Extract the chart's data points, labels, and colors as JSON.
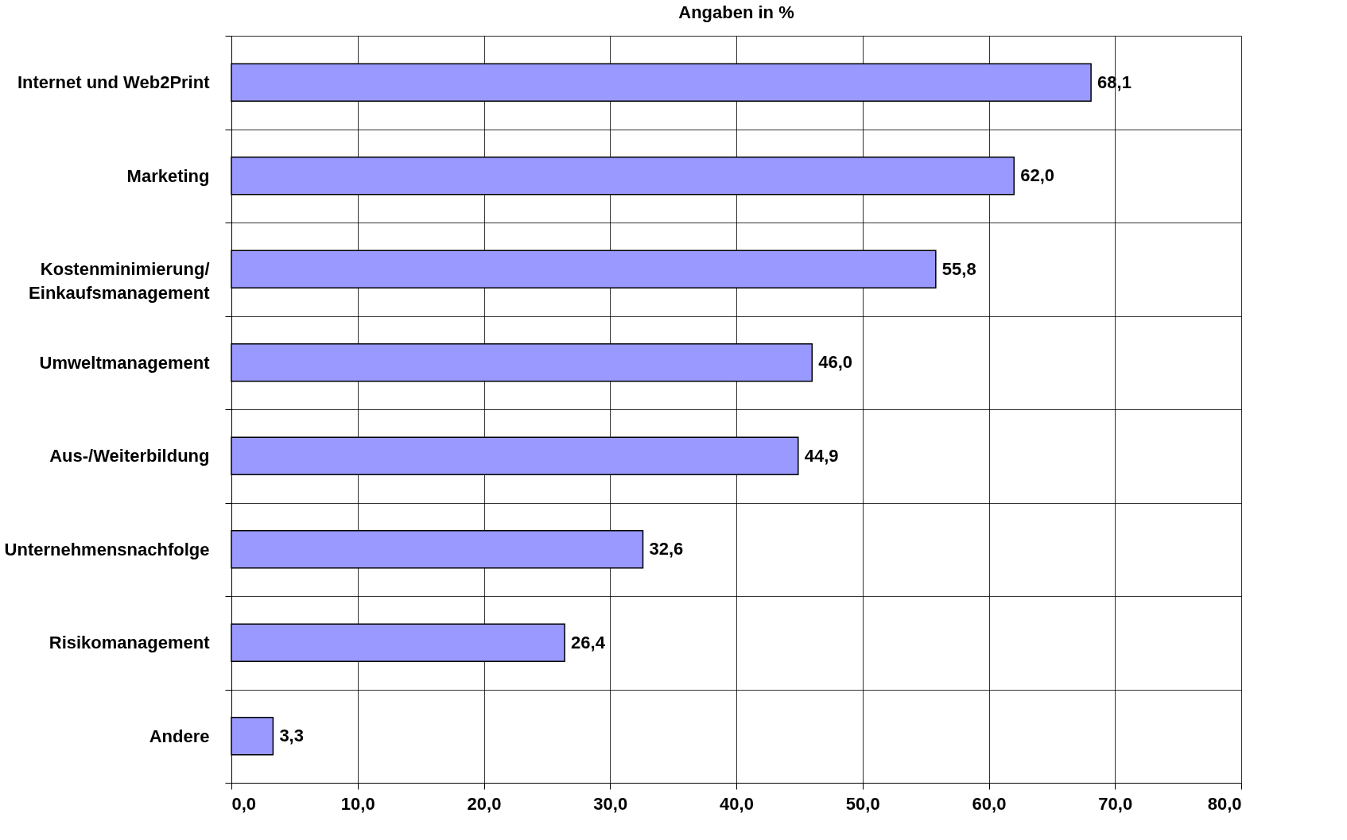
{
  "chart_data": {
    "type": "bar",
    "orientation": "horizontal",
    "title": "Angaben in %",
    "categories": [
      "Internet und Web2Print",
      "Marketing",
      "Kostenminimierung/\nEinkaufsmanagement",
      "Umweltmanagement",
      "Aus-/Weiterbildung",
      "Unternehmensnachfolge",
      "Risikomanagement",
      "Andere"
    ],
    "values": [
      68.1,
      62.0,
      55.8,
      46.0,
      44.9,
      32.6,
      26.4,
      3.3
    ],
    "value_labels": [
      "68,1",
      "62,0",
      "55,8",
      "46,0",
      "44,9",
      "32,6",
      "26,4",
      "3,3"
    ],
    "color": "#9999ff",
    "xlim": [
      0,
      80
    ],
    "xticks": [
      {
        "value": 0,
        "label": "0,0"
      },
      {
        "value": 10,
        "label": "10,0"
      },
      {
        "value": 20,
        "label": "20,0"
      },
      {
        "value": 30,
        "label": "30,0"
      },
      {
        "value": 40,
        "label": "40,0"
      },
      {
        "value": 50,
        "label": "50,0"
      },
      {
        "value": 60,
        "label": "60,0"
      },
      {
        "value": 70,
        "label": "70,0"
      },
      {
        "value": 80,
        "label": "80,0"
      }
    ],
    "grid": true
  }
}
